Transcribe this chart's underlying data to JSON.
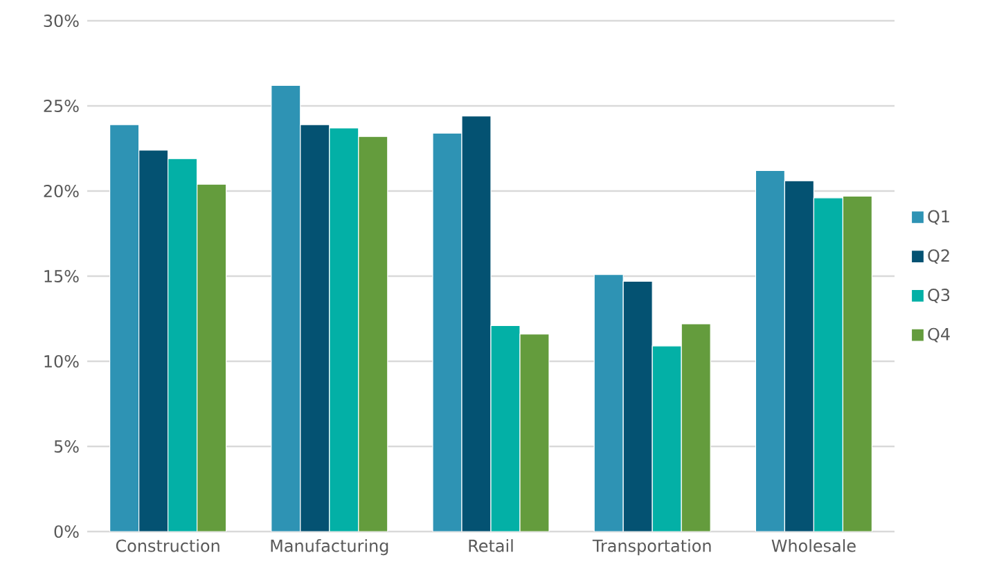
{
  "chart_data": {
    "type": "bar",
    "categories": [
      "Construction",
      "Manufacturing",
      "Retail",
      "Transportation",
      "Wholesale"
    ],
    "series": [
      {
        "name": "Q1",
        "color": "#2e93b4",
        "values": [
          23.9,
          26.2,
          23.4,
          15.1,
          21.2
        ]
      },
      {
        "name": "Q2",
        "color": "#045272",
        "values": [
          22.4,
          23.9,
          24.4,
          14.7,
          20.6
        ]
      },
      {
        "name": "Q3",
        "color": "#03b0a6",
        "values": [
          21.9,
          23.7,
          12.1,
          10.9,
          19.6
        ]
      },
      {
        "name": "Q4",
        "color": "#649c3d",
        "values": [
          20.4,
          23.2,
          11.6,
          12.2,
          19.7
        ]
      }
    ],
    "ylim": [
      0,
      30
    ],
    "yticks": [
      {
        "value": 0,
        "label": "0%"
      },
      {
        "value": 5,
        "label": "5%"
      },
      {
        "value": 10,
        "label": "10%"
      },
      {
        "value": 15,
        "label": "15%"
      },
      {
        "value": 20,
        "label": "20%"
      },
      {
        "value": 25,
        "label": "25%"
      },
      {
        "value": 30,
        "label": "30%"
      }
    ],
    "grid": "y",
    "legend": "right"
  }
}
